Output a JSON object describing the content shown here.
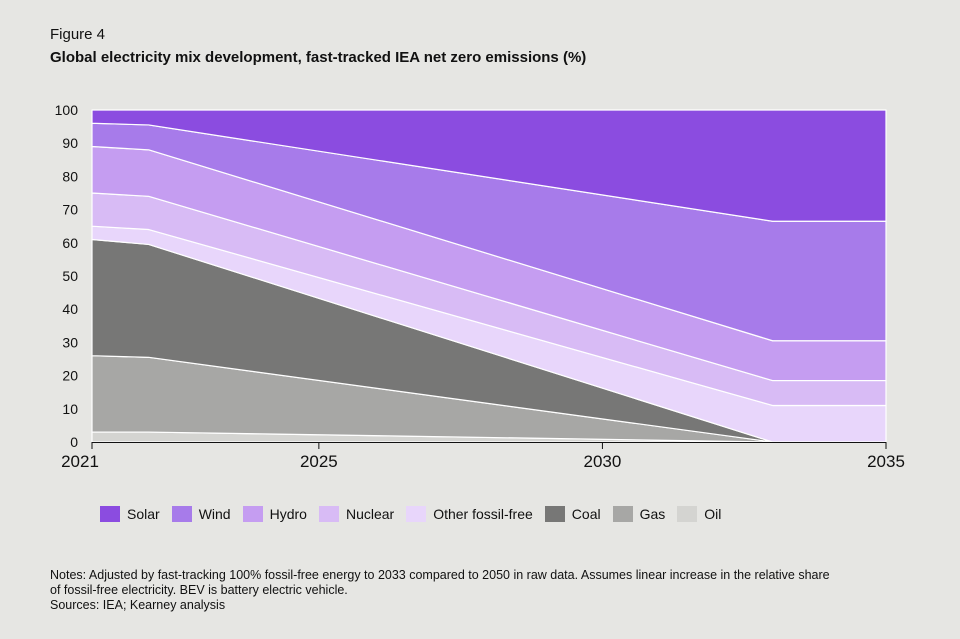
{
  "figure_label": "Figure 4",
  "title": "Global electricity mix development, fast-tracked IEA net zero emissions (%)",
  "notes": {
    "line1": "Notes: Adjusted by fast-tracking 100% fossil-free energy to 2033 compared to 2050 in raw data. Assumes linear increase in the relative share",
    "line2": "of fossil-free electricity. BEV is battery electric vehicle.",
    "sources": "Sources: IEA; Kearney analysis"
  },
  "chart_data": {
    "type": "area",
    "stacked": true,
    "x": [
      2021,
      2022,
      2033,
      2035
    ],
    "xticks": [
      2021,
      2025,
      2030,
      2035
    ],
    "xlim": [
      2021,
      2035
    ],
    "ylim": [
      0,
      100
    ],
    "yticks": [
      0,
      10,
      20,
      30,
      40,
      50,
      60,
      70,
      80,
      90,
      100
    ],
    "grid": false,
    "legend_position": "bottom",
    "series": [
      {
        "name": "Oil",
        "color": "#d4d4d1",
        "values": [
          3,
          3,
          0,
          0
        ]
      },
      {
        "name": "Gas",
        "color": "#a7a7a5",
        "values": [
          23,
          22.5,
          0,
          0
        ]
      },
      {
        "name": "Coal",
        "color": "#777776",
        "values": [
          35,
          34,
          0,
          0
        ]
      },
      {
        "name": "Other fossil-free",
        "color": "#e8d6fb",
        "values": [
          4,
          4.5,
          11,
          11
        ]
      },
      {
        "name": "Nuclear",
        "color": "#d8bbf5",
        "values": [
          10,
          10,
          7.5,
          7.5
        ]
      },
      {
        "name": "Hydro",
        "color": "#c59df1",
        "values": [
          14,
          14,
          12,
          12
        ]
      },
      {
        "name": "Wind",
        "color": "#a77bea",
        "values": [
          7,
          7.5,
          36,
          36
        ]
      },
      {
        "name": "Solar",
        "color": "#8b4ce0",
        "values": [
          4,
          4.5,
          33.5,
          33.5
        ]
      }
    ],
    "legend_order": [
      "Solar",
      "Wind",
      "Hydro",
      "Nuclear",
      "Other fossil-free",
      "Coal",
      "Gas",
      "Oil"
    ]
  }
}
